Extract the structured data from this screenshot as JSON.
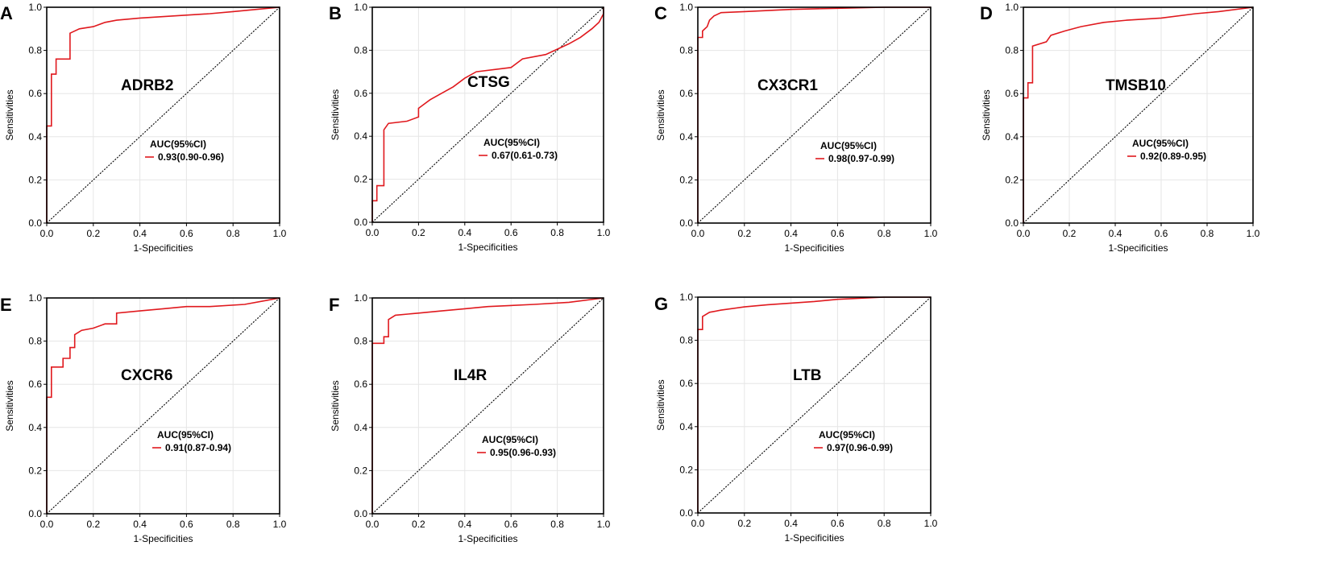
{
  "axis_labels": {
    "x": "1-Specificities",
    "y": "Sensitivities"
  },
  "chart_data": [
    {
      "type": "line",
      "panel_label": "A",
      "title": "ADRB2",
      "xlabel": "1-Specificities",
      "ylabel": "Sensitivities",
      "xlim": [
        0,
        1
      ],
      "ylim": [
        0,
        1
      ],
      "grid": true,
      "legend_title": "AUC(95%CI)",
      "legend_entry": "0.93(0.90-0.96)",
      "series": [
        {
          "name": "ROC",
          "color": "#e0191e",
          "x": [
            0,
            0,
            0.02,
            0.02,
            0.04,
            0.04,
            0.1,
            0.1,
            0.14,
            0.2,
            0.25,
            0.3,
            0.4,
            0.55,
            0.7,
            0.8,
            0.9,
            1.0
          ],
          "y": [
            0,
            0.45,
            0.45,
            0.69,
            0.69,
            0.76,
            0.76,
            0.88,
            0.9,
            0.91,
            0.93,
            0.94,
            0.95,
            0.96,
            0.97,
            0.98,
            0.99,
            1.0
          ]
        },
        {
          "name": "Reference",
          "color": "#000000",
          "x": [
            0,
            1
          ],
          "y": [
            0,
            1
          ]
        }
      ]
    },
    {
      "type": "line",
      "panel_label": "B",
      "title": "CTSG",
      "xlabel": "1-Specificities",
      "ylabel": "Sensitivities",
      "xlim": [
        0,
        1
      ],
      "ylim": [
        0,
        1
      ],
      "grid": true,
      "legend_title": "AUC(95%CI)",
      "legend_entry": "0.67(0.61-0.73)",
      "series": [
        {
          "name": "ROC",
          "color": "#e0191e",
          "x": [
            0,
            0,
            0.02,
            0.02,
            0.05,
            0.05,
            0.07,
            0.15,
            0.2,
            0.2,
            0.25,
            0.3,
            0.35,
            0.4,
            0.45,
            0.6,
            0.65,
            0.75,
            0.85,
            0.9,
            0.95,
            0.98,
            1.0,
            1.0
          ],
          "y": [
            0,
            0.1,
            0.1,
            0.17,
            0.17,
            0.43,
            0.46,
            0.47,
            0.49,
            0.53,
            0.57,
            0.6,
            0.63,
            0.67,
            0.7,
            0.72,
            0.76,
            0.78,
            0.83,
            0.86,
            0.9,
            0.93,
            0.97,
            1.0
          ]
        },
        {
          "name": "Reference",
          "color": "#000000",
          "x": [
            0,
            1
          ],
          "y": [
            0,
            1
          ]
        }
      ]
    },
    {
      "type": "line",
      "panel_label": "C",
      "title": "CX3CR1",
      "xlabel": "1-Specificities",
      "ylabel": "Sensitivities",
      "xlim": [
        0,
        1
      ],
      "ylim": [
        0,
        1
      ],
      "grid": true,
      "legend_title": "AUC(95%CI)",
      "legend_entry": "0.98(0.97-0.99)",
      "series": [
        {
          "name": "ROC",
          "color": "#e0191e",
          "x": [
            0,
            0,
            0.02,
            0.02,
            0.04,
            0.05,
            0.07,
            0.1,
            0.2,
            0.4,
            0.6,
            0.8,
            1.0
          ],
          "y": [
            0,
            0.86,
            0.86,
            0.89,
            0.91,
            0.94,
            0.96,
            0.975,
            0.98,
            0.99,
            0.995,
            1.0,
            1.0
          ]
        },
        {
          "name": "Reference",
          "color": "#000000",
          "x": [
            0,
            1
          ],
          "y": [
            0,
            1
          ]
        }
      ]
    },
    {
      "type": "line",
      "panel_label": "D",
      "title": "TMSB10",
      "xlabel": "1-Specificities",
      "ylabel": "Sensitivities",
      "xlim": [
        0,
        1
      ],
      "ylim": [
        0,
        1
      ],
      "grid": true,
      "legend_title": "AUC(95%CI)",
      "legend_entry": "0.92(0.89-0.95)",
      "series": [
        {
          "name": "ROC",
          "color": "#e0191e",
          "x": [
            0,
            0,
            0.02,
            0.02,
            0.04,
            0.04,
            0.1,
            0.12,
            0.18,
            0.25,
            0.35,
            0.45,
            0.6,
            0.75,
            0.85,
            1.0
          ],
          "y": [
            0,
            0.58,
            0.58,
            0.65,
            0.65,
            0.82,
            0.84,
            0.87,
            0.89,
            0.91,
            0.93,
            0.94,
            0.95,
            0.97,
            0.98,
            1.0
          ]
        },
        {
          "name": "Reference",
          "color": "#000000",
          "x": [
            0,
            1
          ],
          "y": [
            0,
            1
          ]
        }
      ]
    },
    {
      "type": "line",
      "panel_label": "E",
      "title": "CXCR6",
      "xlabel": "1-Specificities",
      "ylabel": "Sensitivities",
      "xlim": [
        0,
        1
      ],
      "ylim": [
        0,
        1
      ],
      "grid": true,
      "legend_title": "AUC(95%CI)",
      "legend_entry": "0.91(0.87-0.94)",
      "series": [
        {
          "name": "ROC",
          "color": "#e0191e",
          "x": [
            0,
            0,
            0.02,
            0.02,
            0.07,
            0.07,
            0.1,
            0.1,
            0.12,
            0.12,
            0.15,
            0.2,
            0.25,
            0.3,
            0.3,
            0.4,
            0.5,
            0.6,
            0.7,
            0.85,
            0.95,
            1.0
          ],
          "y": [
            0,
            0.54,
            0.54,
            0.68,
            0.68,
            0.72,
            0.72,
            0.77,
            0.77,
            0.83,
            0.85,
            0.86,
            0.88,
            0.88,
            0.93,
            0.94,
            0.95,
            0.96,
            0.96,
            0.97,
            0.99,
            1.0
          ]
        },
        {
          "name": "Reference",
          "color": "#000000",
          "x": [
            0,
            1
          ],
          "y": [
            0,
            1
          ]
        }
      ]
    },
    {
      "type": "line",
      "panel_label": "F",
      "title": "IL4R",
      "xlabel": "1-Specificities",
      "ylabel": "Sensitivities",
      "xlim": [
        0,
        1
      ],
      "ylim": [
        0,
        1
      ],
      "grid": true,
      "legend_title": "AUC(95%CI)",
      "legend_entry": "0.95(0.96-0.93)",
      "series": [
        {
          "name": "ROC",
          "color": "#e0191e",
          "x": [
            0,
            0,
            0.05,
            0.05,
            0.07,
            0.07,
            0.1,
            0.2,
            0.3,
            0.4,
            0.5,
            0.7,
            0.85,
            1.0
          ],
          "y": [
            0,
            0.79,
            0.79,
            0.82,
            0.82,
            0.9,
            0.92,
            0.93,
            0.94,
            0.95,
            0.96,
            0.97,
            0.98,
            1.0
          ]
        },
        {
          "name": "Reference",
          "color": "#000000",
          "x": [
            0,
            1
          ],
          "y": [
            0,
            1
          ]
        }
      ]
    },
    {
      "type": "line",
      "panel_label": "G",
      "title": "LTB",
      "xlabel": "1-Specificities",
      "ylabel": "Sensitivities",
      "xlim": [
        0,
        1
      ],
      "ylim": [
        0,
        1
      ],
      "grid": true,
      "legend_title": "AUC(95%CI)",
      "legend_entry": "0.97(0.96-0.99)",
      "series": [
        {
          "name": "ROC",
          "color": "#e0191e",
          "x": [
            0,
            0,
            0.02,
            0.02,
            0.05,
            0.1,
            0.2,
            0.3,
            0.5,
            0.6,
            0.8,
            1.0
          ],
          "y": [
            0,
            0.85,
            0.85,
            0.91,
            0.93,
            0.94,
            0.955,
            0.965,
            0.98,
            0.99,
            1.0,
            1.0
          ]
        },
        {
          "name": "Reference",
          "color": "#000000",
          "x": [
            0,
            1
          ],
          "y": [
            0,
            1
          ]
        }
      ]
    }
  ]
}
